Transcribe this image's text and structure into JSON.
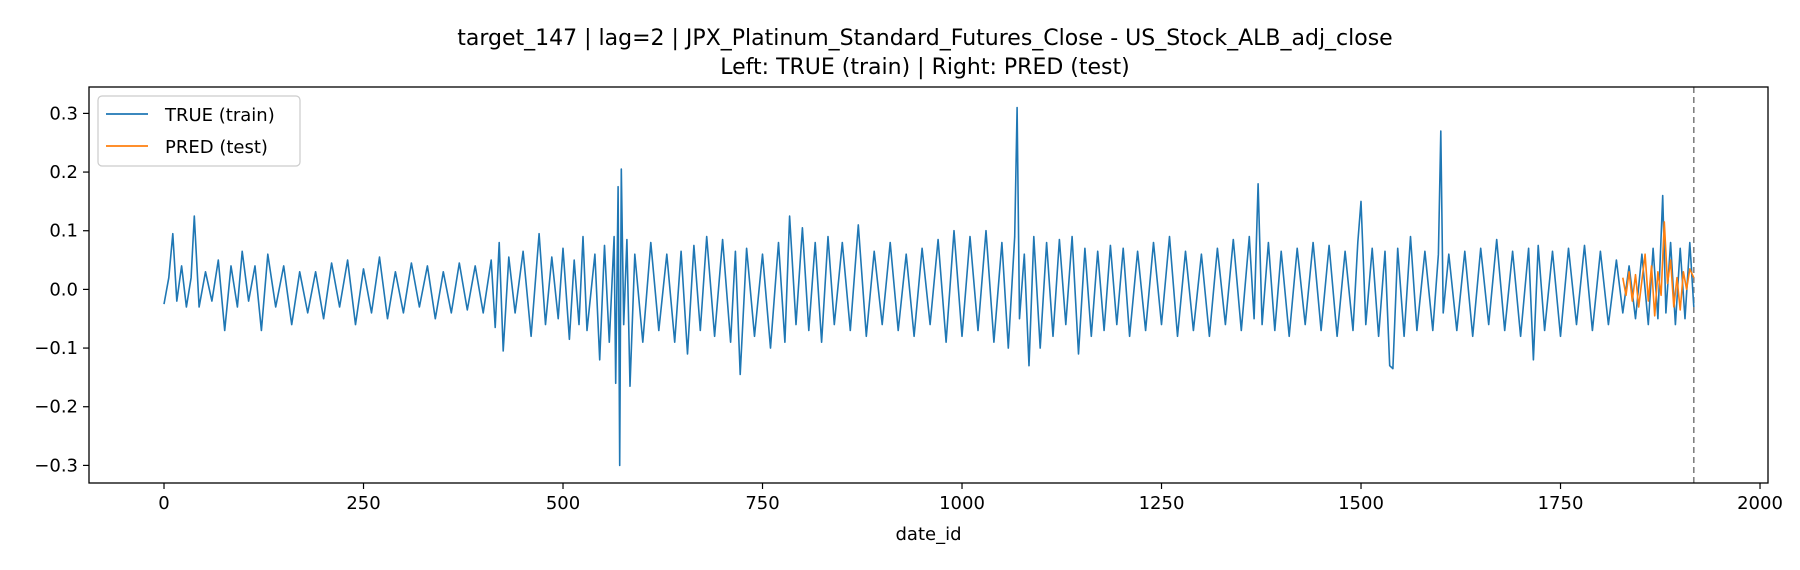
{
  "chart_data": {
    "type": "line",
    "title": "target_147 | lag=2 | JPX_Platinum_Standard_Futures_Close - US_Stock_ALB_adj_close",
    "subtitle": "Left: TRUE (train) | Right: PRED (test)",
    "xlabel": "date_id",
    "ylabel": "",
    "xlim": [
      -94,
      2010
    ],
    "ylim": [
      -0.33,
      0.345
    ],
    "x_ticks": [
      0,
      250,
      500,
      750,
      1000,
      1250,
      1500,
      1750,
      2000
    ],
    "y_ticks": [
      -0.3,
      -0.2,
      -0.1,
      0.0,
      0.1,
      0.2,
      0.3
    ],
    "y_tick_labels": [
      "−0.3",
      "−0.2",
      "−0.1",
      "0.0",
      "0.1",
      "0.2",
      "0.3"
    ],
    "grid": false,
    "legend_position": "upper-left",
    "split_marker_x": 1917,
    "series": [
      {
        "name": "TRUE (train)",
        "color": "#1f77b4",
        "x_start": 0,
        "x_end": 1917,
        "points": [
          [
            0,
            -0.025
          ],
          [
            6,
            0.02
          ],
          [
            11,
            0.095
          ],
          [
            16,
            -0.02
          ],
          [
            22,
            0.04
          ],
          [
            28,
            -0.03
          ],
          [
            34,
            0.02
          ],
          [
            38,
            0.125
          ],
          [
            44,
            -0.03
          ],
          [
            52,
            0.03
          ],
          [
            60,
            -0.02
          ],
          [
            68,
            0.05
          ],
          [
            76,
            -0.07
          ],
          [
            84,
            0.04
          ],
          [
            92,
            -0.03
          ],
          [
            98,
            0.065
          ],
          [
            106,
            -0.02
          ],
          [
            114,
            0.04
          ],
          [
            122,
            -0.07
          ],
          [
            130,
            0.06
          ],
          [
            140,
            -0.03
          ],
          [
            150,
            0.04
          ],
          [
            160,
            -0.06
          ],
          [
            170,
            0.03
          ],
          [
            180,
            -0.04
          ],
          [
            190,
            0.03
          ],
          [
            200,
            -0.05
          ],
          [
            210,
            0.045
          ],
          [
            220,
            -0.03
          ],
          [
            230,
            0.05
          ],
          [
            240,
            -0.06
          ],
          [
            250,
            0.035
          ],
          [
            260,
            -0.04
          ],
          [
            270,
            0.055
          ],
          [
            280,
            -0.05
          ],
          [
            290,
            0.03
          ],
          [
            300,
            -0.04
          ],
          [
            310,
            0.045
          ],
          [
            320,
            -0.03
          ],
          [
            330,
            0.04
          ],
          [
            340,
            -0.05
          ],
          [
            350,
            0.03
          ],
          [
            360,
            -0.04
          ],
          [
            370,
            0.045
          ],
          [
            380,
            -0.035
          ],
          [
            390,
            0.04
          ],
          [
            400,
            -0.04
          ],
          [
            410,
            0.05
          ],
          [
            415,
            -0.065
          ],
          [
            420,
            0.08
          ],
          [
            425,
            -0.105
          ],
          [
            432,
            0.055
          ],
          [
            440,
            -0.04
          ],
          [
            450,
            0.065
          ],
          [
            460,
            -0.08
          ],
          [
            470,
            0.095
          ],
          [
            478,
            -0.06
          ],
          [
            486,
            0.055
          ],
          [
            494,
            -0.05
          ],
          [
            500,
            0.07
          ],
          [
            508,
            -0.085
          ],
          [
            514,
            0.05
          ],
          [
            520,
            -0.06
          ],
          [
            525,
            0.09
          ],
          [
            530,
            -0.07
          ],
          [
            540,
            0.06
          ],
          [
            546,
            -0.12
          ],
          [
            552,
            0.075
          ],
          [
            558,
            -0.09
          ],
          [
            564,
            0.09
          ],
          [
            566,
            -0.16
          ],
          [
            569,
            0.175
          ],
          [
            571,
            -0.3
          ],
          [
            573,
            0.205
          ],
          [
            576,
            -0.06
          ],
          [
            580,
            0.085
          ],
          [
            584,
            -0.165
          ],
          [
            590,
            0.06
          ],
          [
            600,
            -0.09
          ],
          [
            610,
            0.08
          ],
          [
            620,
            -0.07
          ],
          [
            630,
            0.06
          ],
          [
            640,
            -0.09
          ],
          [
            648,
            0.065
          ],
          [
            656,
            -0.11
          ],
          [
            664,
            0.075
          ],
          [
            672,
            -0.07
          ],
          [
            680,
            0.09
          ],
          [
            690,
            -0.08
          ],
          [
            700,
            0.085
          ],
          [
            710,
            -0.09
          ],
          [
            716,
            0.065
          ],
          [
            722,
            -0.145
          ],
          [
            730,
            0.07
          ],
          [
            740,
            -0.08
          ],
          [
            750,
            0.06
          ],
          [
            760,
            -0.1
          ],
          [
            770,
            0.08
          ],
          [
            778,
            -0.09
          ],
          [
            784,
            0.125
          ],
          [
            792,
            -0.06
          ],
          [
            800,
            0.105
          ],
          [
            808,
            -0.07
          ],
          [
            816,
            0.08
          ],
          [
            824,
            -0.09
          ],
          [
            832,
            0.09
          ],
          [
            840,
            -0.06
          ],
          [
            850,
            0.08
          ],
          [
            860,
            -0.07
          ],
          [
            870,
            0.11
          ],
          [
            880,
            -0.08
          ],
          [
            890,
            0.065
          ],
          [
            900,
            -0.06
          ],
          [
            910,
            0.08
          ],
          [
            920,
            -0.07
          ],
          [
            930,
            0.06
          ],
          [
            940,
            -0.08
          ],
          [
            950,
            0.07
          ],
          [
            960,
            -0.06
          ],
          [
            970,
            0.085
          ],
          [
            980,
            -0.09
          ],
          [
            990,
            0.1
          ],
          [
            1000,
            -0.08
          ],
          [
            1010,
            0.09
          ],
          [
            1020,
            -0.07
          ],
          [
            1030,
            0.1
          ],
          [
            1040,
            -0.09
          ],
          [
            1050,
            0.08
          ],
          [
            1058,
            -0.1
          ],
          [
            1066,
            0.09
          ],
          [
            1069,
            0.31
          ],
          [
            1072,
            -0.05
          ],
          [
            1078,
            0.06
          ],
          [
            1084,
            -0.13
          ],
          [
            1090,
            0.09
          ],
          [
            1098,
            -0.1
          ],
          [
            1106,
            0.08
          ],
          [
            1114,
            -0.08
          ],
          [
            1122,
            0.085
          ],
          [
            1130,
            -0.06
          ],
          [
            1138,
            0.09
          ],
          [
            1146,
            -0.11
          ],
          [
            1154,
            0.07
          ],
          [
            1162,
            -0.08
          ],
          [
            1170,
            0.065
          ],
          [
            1178,
            -0.07
          ],
          [
            1186,
            0.075
          ],
          [
            1194,
            -0.06
          ],
          [
            1202,
            0.07
          ],
          [
            1210,
            -0.08
          ],
          [
            1220,
            0.065
          ],
          [
            1230,
            -0.07
          ],
          [
            1240,
            0.08
          ],
          [
            1250,
            -0.06
          ],
          [
            1260,
            0.09
          ],
          [
            1270,
            -0.08
          ],
          [
            1280,
            0.065
          ],
          [
            1290,
            -0.07
          ],
          [
            1300,
            0.06
          ],
          [
            1310,
            -0.08
          ],
          [
            1320,
            0.07
          ],
          [
            1330,
            -0.06
          ],
          [
            1340,
            0.085
          ],
          [
            1350,
            -0.07
          ],
          [
            1360,
            0.09
          ],
          [
            1366,
            -0.05
          ],
          [
            1371,
            0.18
          ],
          [
            1376,
            -0.06
          ],
          [
            1384,
            0.08
          ],
          [
            1392,
            -0.07
          ],
          [
            1400,
            0.065
          ],
          [
            1410,
            -0.08
          ],
          [
            1420,
            0.07
          ],
          [
            1430,
            -0.06
          ],
          [
            1440,
            0.08
          ],
          [
            1450,
            -0.07
          ],
          [
            1460,
            0.075
          ],
          [
            1470,
            -0.08
          ],
          [
            1480,
            0.065
          ],
          [
            1490,
            -0.07
          ],
          [
            1496,
            0.08
          ],
          [
            1500,
            0.15
          ],
          [
            1506,
            -0.06
          ],
          [
            1514,
            0.07
          ],
          [
            1522,
            -0.08
          ],
          [
            1530,
            0.065
          ],
          [
            1536,
            -0.13
          ],
          [
            1540,
            -0.135
          ],
          [
            1546,
            0.07
          ],
          [
            1554,
            -0.08
          ],
          [
            1562,
            0.09
          ],
          [
            1570,
            -0.07
          ],
          [
            1580,
            0.065
          ],
          [
            1590,
            -0.07
          ],
          [
            1597,
            0.06
          ],
          [
            1600,
            0.27
          ],
          [
            1603,
            -0.04
          ],
          [
            1610,
            0.06
          ],
          [
            1620,
            -0.07
          ],
          [
            1630,
            0.065
          ],
          [
            1640,
            -0.08
          ],
          [
            1650,
            0.07
          ],
          [
            1660,
            -0.06
          ],
          [
            1670,
            0.085
          ],
          [
            1680,
            -0.07
          ],
          [
            1690,
            0.065
          ],
          [
            1700,
            -0.08
          ],
          [
            1710,
            0.07
          ],
          [
            1716,
            -0.12
          ],
          [
            1722,
            0.075
          ],
          [
            1730,
            -0.07
          ],
          [
            1740,
            0.065
          ],
          [
            1750,
            -0.08
          ],
          [
            1760,
            0.07
          ],
          [
            1770,
            -0.06
          ],
          [
            1780,
            0.075
          ],
          [
            1790,
            -0.07
          ],
          [
            1800,
            0.065
          ],
          [
            1810,
            -0.06
          ],
          [
            1820,
            0.05
          ],
          [
            1828,
            -0.04
          ],
          [
            1836,
            0.04
          ],
          [
            1844,
            -0.05
          ],
          [
            1852,
            0.06
          ],
          [
            1860,
            -0.06
          ],
          [
            1866,
            0.07
          ],
          [
            1872,
            -0.05
          ],
          [
            1878,
            0.16
          ],
          [
            1882,
            -0.04
          ],
          [
            1888,
            0.08
          ],
          [
            1894,
            -0.06
          ],
          [
            1900,
            0.07
          ],
          [
            1906,
            -0.05
          ],
          [
            1912,
            0.08
          ],
          [
            1917,
            -0.03
          ]
        ]
      },
      {
        "name": "PRED (test)",
        "color": "#ff7f0e",
        "x_start": 1828,
        "x_end": 1917,
        "points": [
          [
            1828,
            0.02
          ],
          [
            1832,
            -0.01
          ],
          [
            1836,
            0.03
          ],
          [
            1840,
            -0.02
          ],
          [
            1844,
            0.025
          ],
          [
            1848,
            -0.03
          ],
          [
            1852,
            0.015
          ],
          [
            1856,
            0.06
          ],
          [
            1860,
            -0.02
          ],
          [
            1864,
            0.04
          ],
          [
            1868,
            -0.045
          ],
          [
            1872,
            0.03
          ],
          [
            1876,
            -0.01
          ],
          [
            1880,
            0.115
          ],
          [
            1884,
            0.01
          ],
          [
            1888,
            0.05
          ],
          [
            1892,
            -0.03
          ],
          [
            1896,
            0.02
          ],
          [
            1900,
            -0.035
          ],
          [
            1904,
            0.03
          ],
          [
            1908,
            0.0
          ],
          [
            1912,
            0.035
          ],
          [
            1917,
            0.02
          ]
        ]
      }
    ]
  }
}
